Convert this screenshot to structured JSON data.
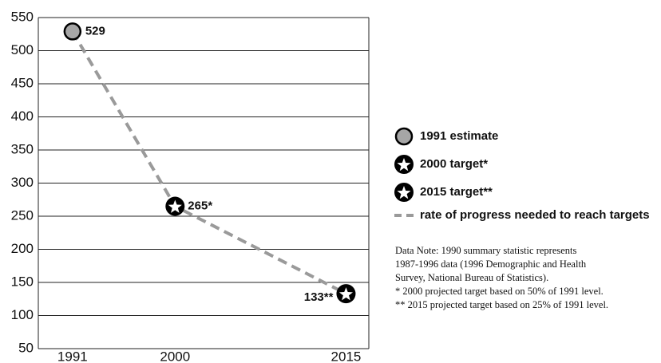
{
  "chart_data": {
    "type": "line",
    "x_numeric": true,
    "xlim": [
      1988,
      2017
    ],
    "xticks": [
      1991,
      2000,
      2015
    ],
    "ylim": [
      50,
      550
    ],
    "yticks": [
      50,
      100,
      150,
      200,
      250,
      300,
      350,
      400,
      450,
      500,
      550
    ],
    "grid": true,
    "series": [
      {
        "name": "1991 estimate",
        "marker": "circle",
        "color": "#a6a6a6",
        "x": [
          1991
        ],
        "values": [
          529
        ],
        "value_labels": [
          "529"
        ]
      },
      {
        "name": "2000 target*",
        "marker": "star",
        "color": "#000000",
        "x": [
          2000
        ],
        "values": [
          265
        ],
        "value_labels": [
          "265*"
        ]
      },
      {
        "name": "2015 target**",
        "marker": "star",
        "color": "#000000",
        "x": [
          2015
        ],
        "values": [
          133
        ],
        "value_labels": [
          "133**"
        ]
      },
      {
        "name": "rate of progress needed to reach targets",
        "marker": "dashed-line",
        "color": "#9a9a9a",
        "x": [
          1991,
          2000,
          2015
        ],
        "values": [
          529,
          265,
          133
        ]
      }
    ],
    "note": [
      "Data Note: 1990 summary statistic represents",
      "1987-1996 data (1996 Demographic and Health",
      "Survey, National Bureau of Statistics).",
      " * 2000 projected target based on 50% of 1991 level.",
      "** 2015 projected target based on 25% of 1991 level."
    ]
  }
}
